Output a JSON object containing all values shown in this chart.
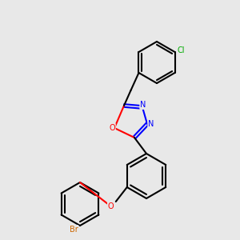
{
  "bg_color": "#e8e8e8",
  "bond_color": "#000000",
  "bond_lw": 1.5,
  "atom_colors": {
    "N": "#0000ff",
    "O": "#ff0000",
    "Cl": "#00aa00",
    "Br": "#cc6600"
  },
  "figsize": [
    3.0,
    3.0
  ],
  "dpi": 100
}
